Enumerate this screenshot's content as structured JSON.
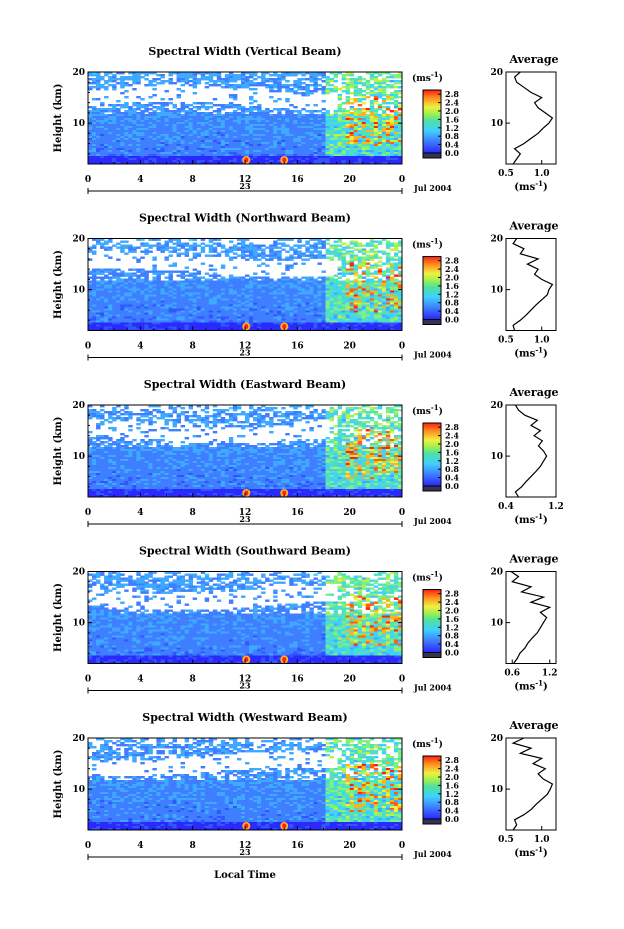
{
  "figure": {
    "xlabel": "Local Time",
    "date_label": "Jul 2004",
    "day_label": "23",
    "colorbar_unit": "(ms",
    "colorbar_unit_exp": "-1",
    "colorbar_unit_close": ")",
    "avg_title": "Average",
    "avg_xlabel": "(ms",
    "avg_xlabel_exp": "-1",
    "avg_xlabel_close": ")"
  },
  "chart_data": [
    {
      "type": "heatmap",
      "title": "Spectral Width (Vertical Beam)",
      "ylabel": "Height (km)",
      "xticks": [
        "0",
        "4",
        "8",
        "12",
        "16",
        "20",
        "0"
      ],
      "xlim": [
        0,
        24
      ],
      "yticks": [
        "20",
        "10"
      ],
      "ylim": [
        2,
        20
      ],
      "colorbar_ticks": [
        "2.8",
        "2.4",
        "2.0",
        "1.6",
        "1.2",
        "0.8",
        "0.4",
        "0.0"
      ],
      "colorbar_range": [
        0,
        3.0
      ],
      "avg": {
        "xticks": [
          "0.5",
          "1.0"
        ],
        "xlim": [
          0.5,
          1.2
        ],
        "heights": [
          2,
          3,
          4,
          5,
          6,
          7,
          8,
          9,
          10,
          11,
          12,
          13,
          14,
          15,
          16,
          17,
          18,
          19,
          20
        ],
        "values": [
          0.6,
          0.65,
          0.7,
          0.62,
          0.75,
          0.85,
          0.95,
          1.02,
          1.1,
          1.15,
          1.05,
          0.95,
          0.9,
          1.0,
          0.85,
          0.75,
          0.65,
          0.62,
          0.7
        ]
      }
    },
    {
      "type": "heatmap",
      "title": "Spectral Width (Northward Beam)",
      "ylabel": "Height (km)",
      "xticks": [
        "0",
        "4",
        "8",
        "12",
        "16",
        "20",
        "0"
      ],
      "xlim": [
        0,
        24
      ],
      "yticks": [
        "20",
        "10"
      ],
      "ylim": [
        2,
        20
      ],
      "colorbar_ticks": [
        "2.8",
        "2.4",
        "2.0",
        "1.6",
        "1.2",
        "0.8",
        "0.4",
        "0.0"
      ],
      "colorbar_range": [
        0,
        3.0
      ],
      "avg": {
        "xticks": [
          "0.5",
          "1.0"
        ],
        "xlim": [
          0.5,
          1.2
        ],
        "heights": [
          2,
          3,
          4,
          5,
          6,
          7,
          8,
          9,
          10,
          11,
          12,
          13,
          14,
          15,
          16,
          17,
          18,
          19,
          20
        ],
        "values": [
          0.62,
          0.6,
          0.7,
          0.78,
          0.85,
          0.92,
          1.0,
          1.08,
          1.1,
          1.15,
          1.0,
          0.9,
          0.95,
          0.8,
          0.95,
          0.7,
          0.75,
          0.6,
          0.65
        ]
      }
    },
    {
      "type": "heatmap",
      "title": "Spectral Width (Eastward Beam)",
      "ylabel": "Height (km)",
      "xticks": [
        "0",
        "4",
        "8",
        "12",
        "16",
        "20",
        "0"
      ],
      "xlim": [
        0,
        24
      ],
      "yticks": [
        "20",
        "10"
      ],
      "ylim": [
        2,
        20
      ],
      "colorbar_ticks": [
        "2.8",
        "2.4",
        "2.0",
        "1.6",
        "1.2",
        "0.8",
        "0.4",
        "0.0"
      ],
      "colorbar_range": [
        0,
        3.0
      ],
      "avg": {
        "xticks": [
          "0.4",
          "1.2"
        ],
        "xlim": [
          0.4,
          1.2
        ],
        "heights": [
          2,
          3,
          4,
          5,
          6,
          7,
          8,
          9,
          10,
          11,
          12,
          13,
          14,
          15,
          16,
          17,
          18,
          19,
          20
        ],
        "values": [
          0.6,
          0.55,
          0.65,
          0.72,
          0.8,
          0.88,
          0.95,
          1.0,
          1.05,
          1.0,
          0.92,
          0.98,
          0.85,
          0.95,
          0.8,
          0.9,
          0.7,
          0.6,
          0.55
        ]
      }
    },
    {
      "type": "heatmap",
      "title": "Spectral Width (Southward Beam)",
      "ylabel": "Height (km)",
      "xticks": [
        "0",
        "4",
        "8",
        "12",
        "16",
        "20",
        "0"
      ],
      "xlim": [
        0,
        24
      ],
      "yticks": [
        "20",
        "10"
      ],
      "ylim": [
        2,
        20
      ],
      "colorbar_ticks": [
        "2.8",
        "2.4",
        "2.0",
        "1.6",
        "1.2",
        "0.8",
        "0.4",
        "0.0"
      ],
      "colorbar_range": [
        0,
        3.0
      ],
      "avg": {
        "xticks": [
          "0.6",
          "1.2"
        ],
        "xlim": [
          0.5,
          1.3
        ],
        "heights": [
          2,
          3,
          4,
          5,
          6,
          7,
          8,
          9,
          10,
          11,
          12,
          13,
          14,
          15,
          16,
          17,
          18,
          19,
          20
        ],
        "values": [
          0.62,
          0.68,
          0.72,
          0.8,
          0.85,
          0.92,
          1.0,
          1.05,
          1.1,
          1.15,
          1.05,
          1.2,
          0.9,
          1.1,
          0.75,
          0.9,
          0.6,
          0.7,
          0.58
        ]
      }
    },
    {
      "type": "heatmap",
      "title": "Spectral Width (Westward Beam)",
      "ylabel": "Height (km)",
      "xticks": [
        "0",
        "4",
        "8",
        "12",
        "16",
        "20",
        "0"
      ],
      "xlim": [
        0,
        24
      ],
      "yticks": [
        "20",
        "10"
      ],
      "ylim": [
        2,
        20
      ],
      "colorbar_ticks": [
        "2.8",
        "2.4",
        "2.0",
        "1.6",
        "1.2",
        "0.8",
        "0.4",
        "0.0"
      ],
      "colorbar_range": [
        0,
        3.0
      ],
      "avg": {
        "xticks": [
          "0.5",
          "1.0"
        ],
        "xlim": [
          0.5,
          1.2
        ],
        "heights": [
          2,
          3,
          4,
          5,
          6,
          7,
          8,
          9,
          10,
          11,
          12,
          13,
          14,
          15,
          16,
          17,
          18,
          19,
          20
        ],
        "values": [
          0.6,
          0.65,
          0.62,
          0.75,
          0.85,
          0.92,
          1.0,
          1.08,
          1.12,
          1.15,
          1.02,
          0.95,
          1.05,
          0.88,
          1.0,
          0.7,
          0.85,
          0.6,
          0.75
        ]
      }
    }
  ]
}
